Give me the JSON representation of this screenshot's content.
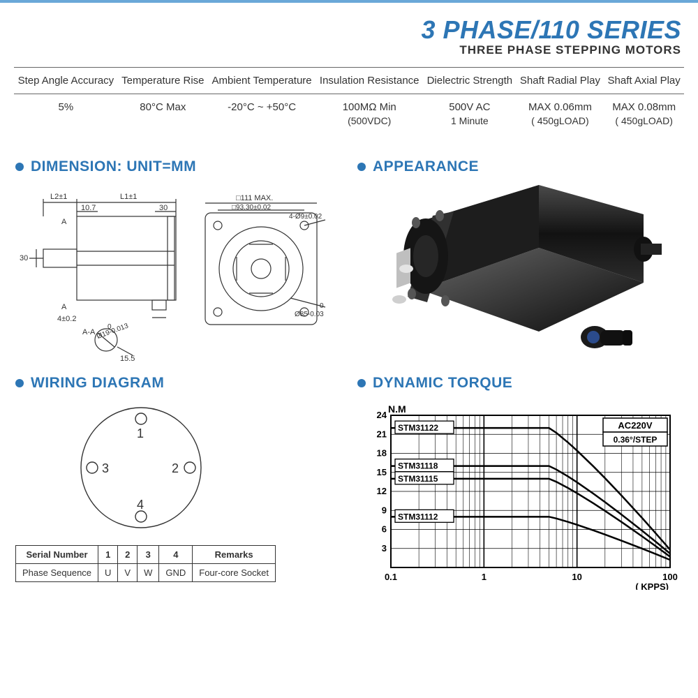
{
  "header": {
    "line1": "3 PHASE/110 SERIES",
    "line2": "THREE PHASE STEPPING MOTORS"
  },
  "colors": {
    "accent": "#2d76b5",
    "rule": "#6aa8d8",
    "text": "#333333",
    "motor_body": "#1b1b1b",
    "chart_bg": "#ffffff"
  },
  "spec_table": {
    "columns": [
      "Step Angle Accuracy",
      "Temperature Rise",
      "Ambient Temperature",
      "Insulation Resistance",
      "Dielectric Strength",
      "Shaft Radial Play",
      "Shaft Axial Play"
    ],
    "row": [
      {
        "main": "5%",
        "sub": ""
      },
      {
        "main": "80°C Max",
        "sub": ""
      },
      {
        "main": "-20°C ~ +50°C",
        "sub": ""
      },
      {
        "main": "100MΩ Min",
        "sub": "(500VDC)"
      },
      {
        "main": "500V AC",
        "sub": "1 Minute"
      },
      {
        "main": "MAX 0.06mm",
        "sub": "( 450gLOAD)"
      },
      {
        "main": "MAX 0.08mm",
        "sub": "( 450gLOAD)"
      }
    ]
  },
  "sections": {
    "dimension": "DIMENSION: UNIT=MM",
    "appearance": "APPEARANCE",
    "wiring": "WIRING DIAGRAM",
    "torque": "DYNAMIC TORQUE"
  },
  "dimension_labels": {
    "L2": "L2±1",
    "L1": "L1±1",
    "d107": "10.7",
    "d30a": "30",
    "d30b": "30",
    "d4": "4±0.2",
    "A": "A",
    "AA": "A-A",
    "d19": "Ø19-0.013",
    "d0": "0",
    "d155": "15.5",
    "box111": "□111 MAX.",
    "box93": "□93.30±0.02",
    "holes": "4-Ø9±0.02",
    "d85": "Ø85-0.03",
    "d85_0": "0"
  },
  "wiring": {
    "pins": [
      "1",
      "2",
      "3",
      "4"
    ],
    "table": {
      "headers": [
        "Serial Number",
        "1",
        "2",
        "3",
        "4",
        "Remarks"
      ],
      "row": [
        "Phase Sequence",
        "U",
        "V",
        "W",
        "GND",
        "Four-core Socket"
      ]
    }
  },
  "torque_chart": {
    "y_label": "N.M",
    "x_label": "( KPPS)",
    "y_ticks": [
      3,
      6,
      9,
      12,
      15,
      18,
      21,
      24
    ],
    "x_ticks": [
      "0.1",
      "1",
      "10",
      "100"
    ],
    "annotations": [
      "AC220V",
      "0.36°/STEP"
    ],
    "series_labels": [
      "STM31122",
      "STM31118",
      "STM31115",
      "STM31112"
    ],
    "series_flat": {
      "STM31122": 22,
      "STM31118": 16,
      "STM31115": 14,
      "STM31112": 8
    },
    "series_tail": {
      "STM31122": 2.8,
      "STM31118": 2.2,
      "STM31115": 1.7,
      "STM31112": 1.2
    },
    "line_color": "#000000",
    "line_width": 2.5,
    "grid_color": "#000000",
    "x_scale": "log",
    "xlim": [
      0.1,
      100
    ],
    "ylim": [
      0,
      24
    ]
  }
}
